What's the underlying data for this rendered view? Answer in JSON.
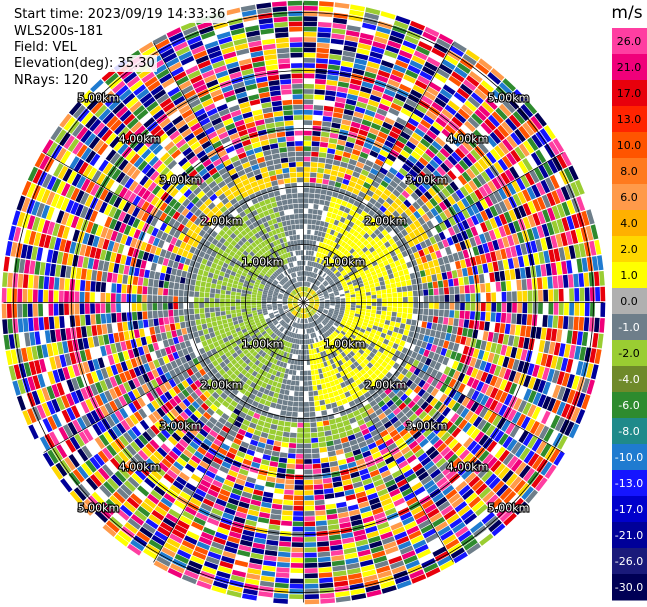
{
  "header": {
    "start_time": "Start time: 2023/09/19 14:33:36",
    "instrument": "WLS200s-181",
    "field": "Field: VEL",
    "elevation": "Elevation(deg): 35.30",
    "nrays": "NRays: 120"
  },
  "ring_labels": [
    "1.00km",
    "2.00km",
    "3.00km",
    "4.00km",
    "5.00km"
  ],
  "colorbar": {
    "unit": "m/s",
    "ticks": [
      "26.0",
      "21.0",
      "17.0",
      "13.0",
      "10.0",
      "8.0",
      "6.0",
      "4.0",
      "2.0",
      "1.0",
      "0.0",
      "-1.0",
      "-2.0",
      "-4.0",
      "-6.0",
      "-8.0",
      "-10.0",
      "-13.0",
      "-17.0",
      "-21.0",
      "-26.0",
      "-30.0"
    ],
    "colors": [
      "#ff3ea1",
      "#f0007a",
      "#e8000c",
      "#ff2400",
      "#ff5400",
      "#ff7a1e",
      "#ff9a4a",
      "#ffb000",
      "#ffd700",
      "#ffff00",
      "#b0b0b0",
      "#6e7e8a",
      "#9acd32",
      "#6f8a2a",
      "#2e8b2e",
      "#1f8a8a",
      "#1f7bd0",
      "#1515ff",
      "#0000cc",
      "#000099",
      "#1a1a7a",
      "#000055"
    ]
  }
}
